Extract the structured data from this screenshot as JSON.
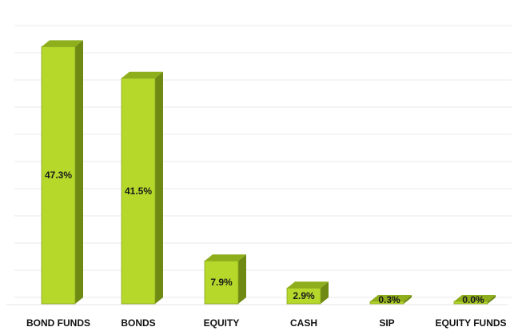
{
  "chart_data": {
    "type": "bar",
    "categories": [
      "BOND FUNDS",
      "BONDS",
      "EQUITY",
      "CASH",
      "SIP",
      "EQUITY FUNDS"
    ],
    "values": [
      47.3,
      41.5,
      7.9,
      2.9,
      0.3,
      0.0
    ],
    "value_labels": [
      "47.3%",
      "41.5%",
      "7.9%",
      "2.9%",
      "0.3%",
      "0.0%"
    ],
    "ylim": [
      0,
      50
    ],
    "grid": true,
    "style": "3d-column",
    "colors": {
      "bar_front": "#b5d82b",
      "bar_side": "#6e8a12",
      "bar_top": "#8fae1c",
      "bar_outline": "#8aa51f",
      "grid": "#e9e9e9",
      "axis_text": "#111111"
    }
  }
}
